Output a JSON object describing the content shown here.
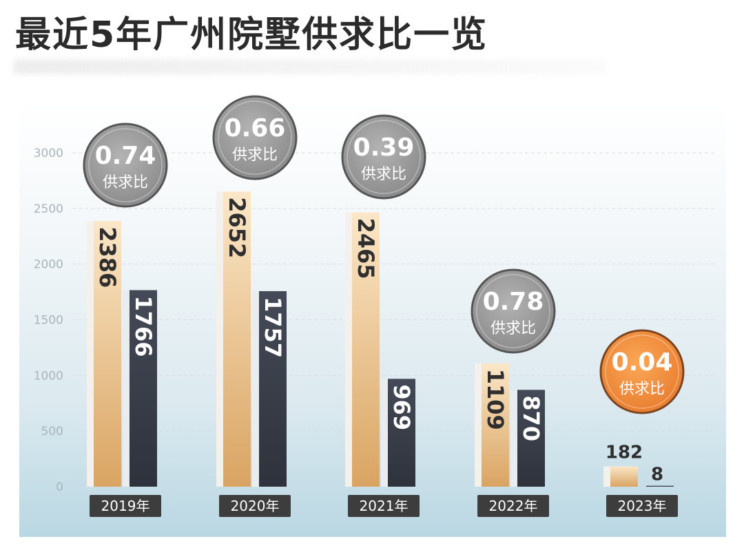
{
  "title": "最近5年广州院墅供求比一览",
  "colors": {
    "supply": "#eabf86",
    "demand": "#3a3f4b",
    "bubble": "#8f8f8f",
    "bubble_highlight": "#ef8c3c",
    "label_bg": "#3d3d3d"
  },
  "chart_data": {
    "type": "bar",
    "title": "最近5年广州院墅供求比一览",
    "categories": [
      "2019年",
      "2020年",
      "2021年",
      "2022年",
      "2023年"
    ],
    "series": [
      {
        "values": [
          2386,
          2652,
          2465,
          1109,
          182
        ]
      },
      {
        "values": [
          1766,
          1757,
          969,
          870,
          8
        ]
      }
    ],
    "ratios": [
      "0.74",
      "0.66",
      "0.39",
      "0.78",
      "0.04"
    ],
    "ratio_label": "供求比",
    "ylim": [
      0,
      3000
    ],
    "yticks": [
      0,
      500,
      1000,
      1500,
      2000,
      2500,
      3000
    ],
    "grid": true,
    "legend": "none"
  }
}
